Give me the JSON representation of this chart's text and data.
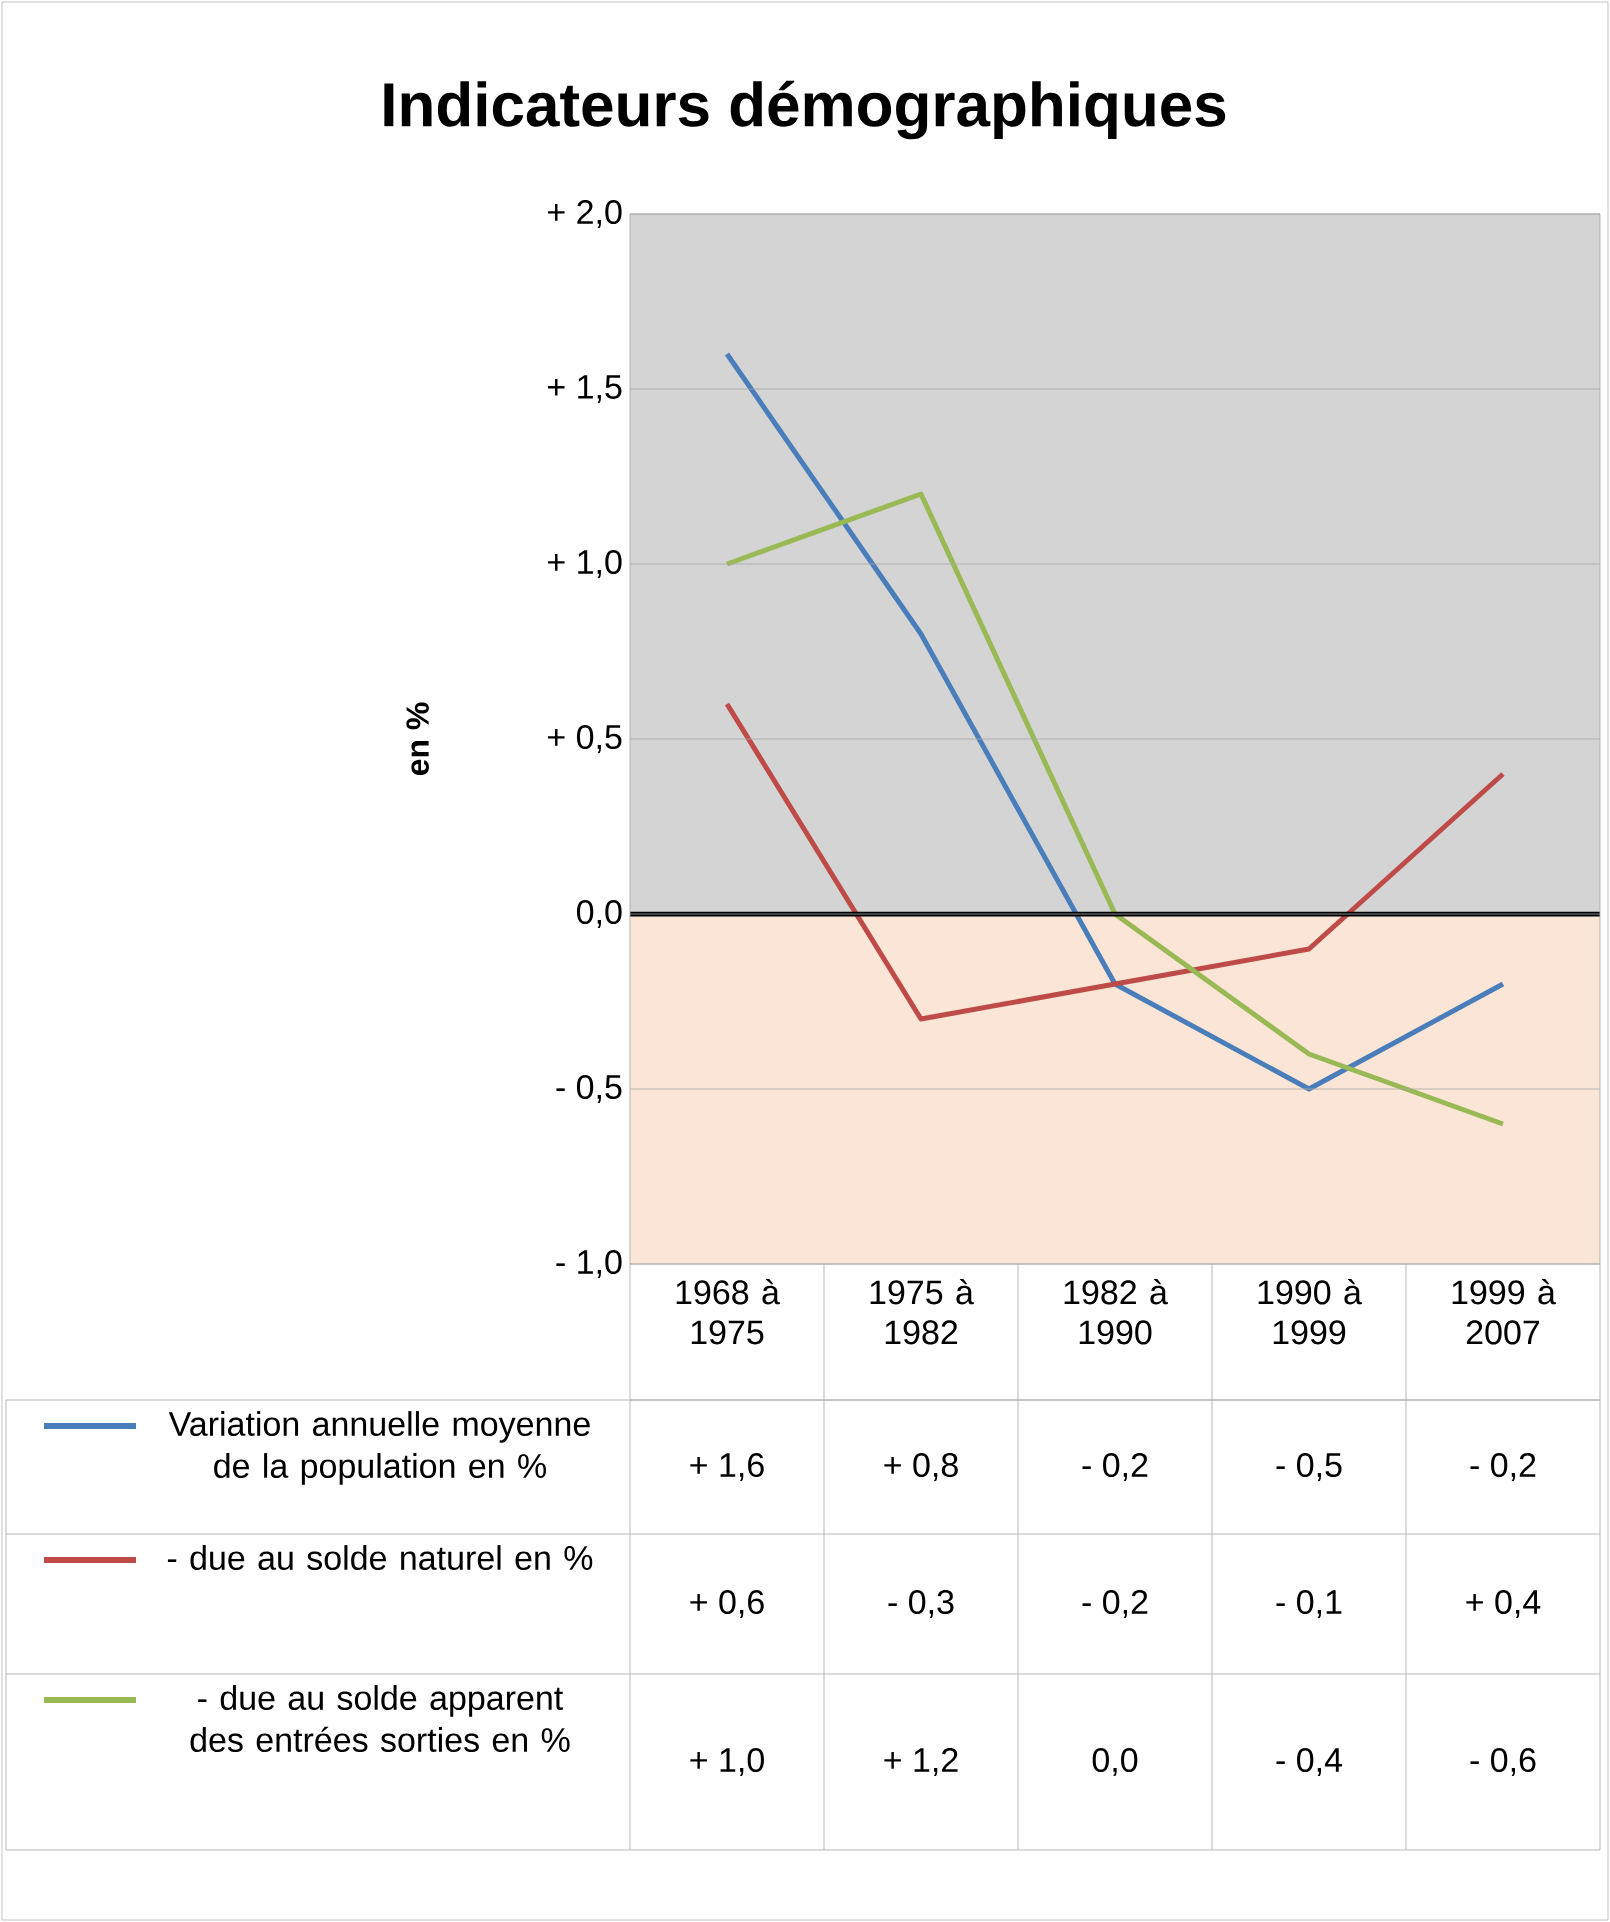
{
  "chart_data": {
    "type": "line",
    "title": "Indicateurs démographiques",
    "ylabel": "en %",
    "categories": [
      "1968 à 1975",
      "1975 à 1982",
      "1982 à 1990",
      "1990 à 1999",
      "1999 à 2007"
    ],
    "series": [
      {
        "name": "Variation annuelle moyenne de la population en %",
        "color": "#4a7ebb",
        "values": [
          1.6,
          0.8,
          -0.2,
          -0.5,
          -0.2
        ],
        "value_labels": [
          "+ 1,6",
          "+ 0,8",
          "- 0,2",
          "- 0,5",
          "- 0,2"
        ]
      },
      {
        "name": "- due au solde naturel en %",
        "color": "#be4b48",
        "values": [
          0.6,
          -0.3,
          -0.2,
          -0.1,
          0.4
        ],
        "value_labels": [
          "+ 0,6",
          "- 0,3",
          "- 0,2",
          "- 0,1",
          "+ 0,4"
        ]
      },
      {
        "name": "- due au solde apparent des entrées sorties en %",
        "color": "#98b954",
        "values": [
          1.0,
          1.2,
          0.0,
          -0.4,
          -0.6
        ],
        "value_labels": [
          "+ 1,0",
          "+ 1,2",
          "0,0",
          "- 0,4",
          "- 0,6"
        ]
      }
    ],
    "ylim": [
      -1,
      2
    ],
    "yticks": [
      {
        "value": -1,
        "label": "- 1,0"
      },
      {
        "value": -0.5,
        "label": "- 0,5"
      },
      {
        "value": 0,
        "label": "0,0"
      },
      {
        "value": 0.5,
        "label": "+ 0,5"
      },
      {
        "value": 1,
        "label": "+ 1,0"
      },
      {
        "value": 1.5,
        "label": "+ 1,5"
      },
      {
        "value": 2,
        "label": "+ 2,0"
      }
    ],
    "grid": "y",
    "legend": "bottom",
    "marker": "none",
    "line_style": "solid",
    "ref_lines": [
      {
        "axis": "y",
        "value": 0,
        "color": "#000000"
      }
    ],
    "bands": [
      {
        "axis": "y",
        "from": 0,
        "to": 2,
        "color": "#d4d4d4"
      },
      {
        "axis": "y",
        "from": -1,
        "to": 0,
        "color": "#fbe5d6"
      }
    ]
  }
}
